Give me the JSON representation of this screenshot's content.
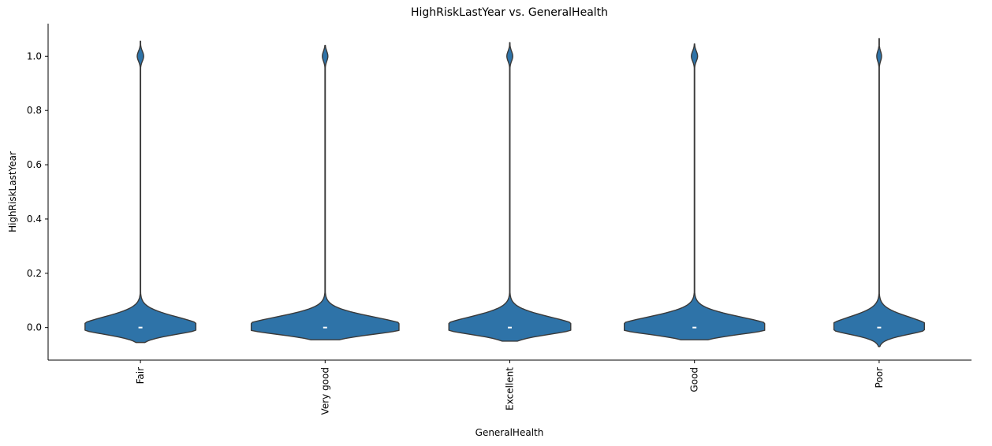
{
  "chart_data": {
    "type": "violin",
    "title": "HighRiskLastYear vs. GeneralHealth",
    "xlabel": "GeneralHealth",
    "ylabel": "HighRiskLastYear",
    "categories": [
      "Fair",
      "Very good",
      "Excellent",
      "Good",
      "Poor"
    ],
    "ylim": [
      -0.12,
      1.12
    ],
    "yticks": [
      0.0,
      0.2,
      0.4,
      0.6,
      0.8,
      1.0
    ],
    "ytick_labels": [
      "0.0",
      "0.2",
      "0.4",
      "0.6",
      "0.8",
      "1.0"
    ],
    "grid": false,
    "violins": [
      {
        "category": "Fair",
        "min": -0.055,
        "max": 1.055,
        "median": 0.0,
        "top_peak": 1.0,
        "bottom_width": 0.6,
        "top_width": 0.035
      },
      {
        "category": "Very good",
        "min": -0.045,
        "max": 1.04,
        "median": 0.0,
        "top_peak": 1.0,
        "bottom_width": 0.8,
        "top_width": 0.03
      },
      {
        "category": "Excellent",
        "min": -0.05,
        "max": 1.05,
        "median": 0.0,
        "top_peak": 1.0,
        "bottom_width": 0.66,
        "top_width": 0.032
      },
      {
        "category": "Good",
        "min": -0.045,
        "max": 1.045,
        "median": 0.0,
        "top_peak": 1.0,
        "bottom_width": 0.76,
        "top_width": 0.034
      },
      {
        "category": "Poor",
        "min": -0.07,
        "max": 1.065,
        "median": 0.0,
        "top_peak": 1.0,
        "bottom_width": 0.49,
        "top_width": 0.026
      }
    ],
    "fill_color": "#2e73a8",
    "edge_color": "#3a3a3a",
    "median_color": "#ffffff"
  }
}
